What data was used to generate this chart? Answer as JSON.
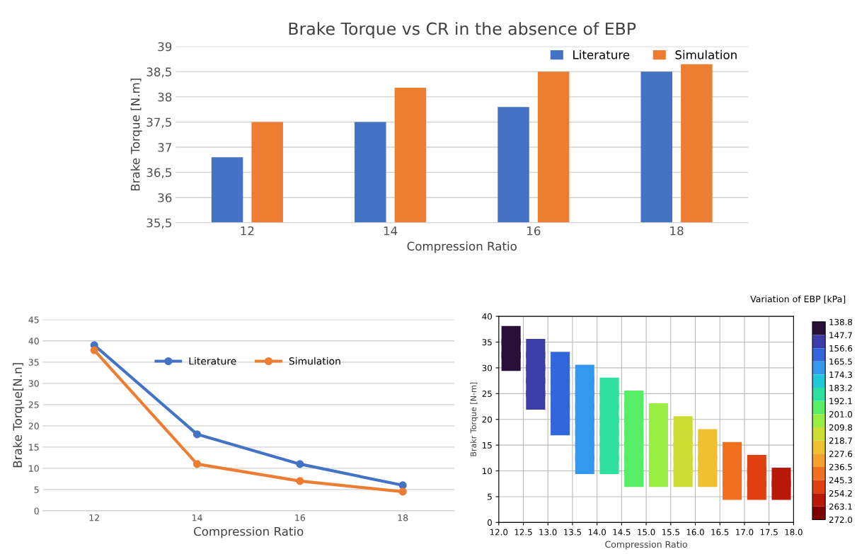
{
  "chart_data": [
    {
      "type": "bar",
      "title": "Brake Torque vs CR in the absence of EBP",
      "xlabel": "Compression Ratio",
      "ylabel": "Brake Torque [N.m]",
      "categories": [
        "12",
        "14",
        "16",
        "18"
      ],
      "series": [
        {
          "name": "Literature",
          "color": "#4472c4",
          "values": [
            36.8,
            37.5,
            37.8,
            38.5
          ]
        },
        {
          "name": "Simulation",
          "color": "#ed7d31",
          "values": [
            37.5,
            38.18,
            38.5,
            38.65
          ]
        }
      ],
      "ylim": [
        35.5,
        39
      ],
      "yticks": [
        {
          "value": 35.5,
          "label": "35,5"
        },
        36,
        {
          "value": 36.5,
          "label": "36,5"
        },
        37,
        {
          "value": 37.5,
          "label": "37,5"
        },
        38,
        {
          "value": 38.5,
          "label": "38,5"
        },
        39
      ],
      "grid": "y",
      "legend": "top right"
    },
    {
      "type": "line",
      "xlabel": "Compression Ratio",
      "ylabel": "Brake Torque[N.n]",
      "categories": [
        "12",
        "14",
        "16",
        "18"
      ],
      "series": [
        {
          "name": "Literature",
          "color": "#4472c4",
          "values": [
            39,
            18,
            11,
            6
          ]
        },
        {
          "name": "Simulation",
          "color": "#ed7d31",
          "values": [
            37.8,
            11,
            7,
            4.5
          ]
        }
      ],
      "ylim": [
        0,
        45
      ],
      "yticks": [
        0,
        5,
        10,
        15,
        20,
        25,
        30,
        35,
        40,
        45
      ],
      "grid": "y",
      "legend": "top",
      "marker": "circle",
      "line_style": "solid"
    },
    {
      "type": "scatter",
      "xlabel": "Compression Ratio",
      "ylabel": "Brakr Torque [N-m]",
      "clabel": "Variation of EBP [kPa]",
      "marker": "square",
      "series": [
        {
          "x": [
            12.25,
            12.25,
            12.25,
            12.75,
            12.75,
            12.75,
            12.75,
            12.75,
            13.25,
            13.25,
            13.25,
            13.25,
            13.25,
            13.25,
            13.75,
            13.75,
            13.75,
            13.75,
            13.75,
            13.75,
            13.75,
            13.75,
            14.25,
            14.25,
            14.25,
            14.25,
            14.25,
            14.25,
            14.25,
            14.75,
            14.75,
            14.75,
            14.75,
            14.75,
            14.75,
            14.75,
            15.25,
            15.25,
            15.25,
            15.25,
            15.25,
            15.25,
            15.75,
            15.75,
            15.75,
            15.75,
            15.75,
            16.25,
            16.25,
            16.25,
            16.25,
            16.75,
            16.75,
            16.75,
            16.75,
            17.25,
            17.25,
            17.25,
            17.75,
            17.75
          ],
          "values": [
            36.25,
            33.75,
            31.25,
            33.75,
            31.25,
            28.75,
            26.25,
            23.75,
            31.25,
            28.75,
            26.25,
            23.75,
            21.25,
            18.75,
            28.75,
            26.25,
            23.75,
            21.25,
            18.75,
            16.25,
            13.75,
            11.25,
            26.25,
            23.75,
            21.25,
            18.75,
            16.25,
            13.75,
            11.25,
            23.75,
            21.25,
            18.75,
            16.25,
            13.75,
            11.25,
            8.75,
            21.25,
            18.75,
            16.25,
            13.75,
            11.25,
            8.75,
            18.75,
            16.25,
            13.75,
            11.25,
            8.75,
            16.25,
            13.75,
            11.25,
            8.75,
            13.75,
            11.25,
            8.75,
            6.25,
            11.25,
            8.75,
            6.25,
            8.75,
            6.25
          ],
          "cvalues": [
            145,
            145,
            145,
            152,
            152,
            152,
            152,
            152,
            162,
            162,
            162,
            162,
            162,
            162,
            172,
            172,
            172,
            172,
            172,
            172,
            172,
            172,
            185,
            185,
            185,
            185,
            185,
            185,
            185,
            196,
            196,
            196,
            196,
            196,
            196,
            196,
            205,
            205,
            205,
            205,
            205,
            205,
            214,
            214,
            214,
            214,
            214,
            224,
            224,
            224,
            224,
            238,
            238,
            238,
            238,
            250,
            250,
            250,
            262,
            262
          ]
        }
      ],
      "xlim": [
        12,
        18
      ],
      "xticks": [
        {
          "value": 12,
          "label": "12.0"
        },
        {
          "value": 12.5,
          "label": "12.5"
        },
        {
          "value": 13,
          "label": "13.0"
        },
        {
          "value": 13.5,
          "label": "13.5"
        },
        {
          "value": 14,
          "label": "14.0"
        },
        {
          "value": 14.5,
          "label": "14.5"
        },
        {
          "value": 15,
          "label": "15.0"
        },
        {
          "value": 15.5,
          "label": "15.5"
        },
        {
          "value": 16,
          "label": "16.0"
        },
        {
          "value": 16.5,
          "label": "16.5"
        },
        {
          "value": 17,
          "label": "17.0"
        },
        {
          "value": 17.5,
          "label": "17.5"
        },
        {
          "value": 18,
          "label": "18.0"
        }
      ],
      "ylim": [
        0,
        40
      ],
      "yticks": [
        0,
        5,
        10,
        15,
        20,
        25,
        30,
        35,
        40
      ],
      "grid": true,
      "clim": [
        272.0,
        138.8
      ],
      "cticks": [
        138.8,
        147.7,
        156.6,
        165.5,
        174.3,
        183.2,
        192.1,
        {
          "value": 201.0,
          "label": "201.0"
        },
        209.8,
        218.7,
        227.6,
        236.5,
        245.3,
        254.2,
        263.1,
        {
          "value": 272.0,
          "label": "272.0"
        }
      ],
      "colors": [
        "#2a0f3a",
        "#3c3ca8",
        "#3366dd",
        "#3399ee",
        "#22c8d8",
        "#2ee0a0",
        "#55ee66",
        "#99ee44",
        "#ccdd33",
        "#f0c030",
        "#f5a030",
        "#f07020",
        "#e04010",
        "#b81808",
        "#800000"
      ]
    }
  ]
}
